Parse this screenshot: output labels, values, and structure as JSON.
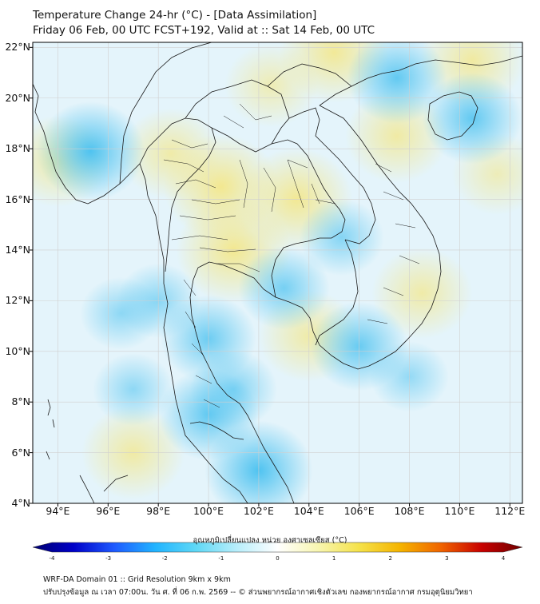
{
  "header": {
    "title": "Temperature Change 24-hr (°C) - [Data Assimilation]",
    "subtitle": "Friday 06 Feb, 00 UTC FCST+192, Valid at :: Sat 14 Feb, 00 UTC"
  },
  "map": {
    "region": "Thailand and mainland Southeast Asia",
    "variable": "24-hour temperature change",
    "units": "°C",
    "lon_range": [
      93,
      112.5
    ],
    "lat_range": [
      4,
      22.2
    ],
    "lat_labels": [
      {
        "value": 22,
        "label": "22°N"
      },
      {
        "value": 20,
        "label": "20°N"
      },
      {
        "value": 18,
        "label": "18°N"
      },
      {
        "value": 16,
        "label": "16°N"
      },
      {
        "value": 14,
        "label": "14°N"
      },
      {
        "value": 12,
        "label": "12°N"
      },
      {
        "value": 10,
        "label": "10°N"
      },
      {
        "value": 8,
        "label": "8°N"
      },
      {
        "value": 6,
        "label": "6°N"
      },
      {
        "value": 4,
        "label": "4°N"
      }
    ],
    "lon_labels": [
      {
        "value": 94,
        "label": "94°E"
      },
      {
        "value": 96,
        "label": "96°E"
      },
      {
        "value": 98,
        "label": "98°E"
      },
      {
        "value": 100,
        "label": "100°E"
      },
      {
        "value": 102,
        "label": "102°E"
      },
      {
        "value": 104,
        "label": "104°E"
      },
      {
        "value": 106,
        "label": "106°E"
      },
      {
        "value": 108,
        "label": "108°E"
      },
      {
        "value": 110,
        "label": "110°E"
      },
      {
        "value": 112,
        "label": "112°E"
      }
    ],
    "gridlines": true,
    "ocean_color": "#e4f4fb",
    "border_color": "#222222"
  },
  "colorbar": {
    "title": "อุณหภูมิเปลี่ยนแปลง หน่วย องศาเซลเซียส (°C)",
    "min": -4,
    "max": 4,
    "ticks": [
      "-4",
      "-3",
      "-2",
      "-1",
      "0",
      "1",
      "2",
      "3",
      "4"
    ],
    "colors": [
      "#000070",
      "#0000c8",
      "#1e5aff",
      "#21b4ff",
      "#5fd8f6",
      "#b8eefb",
      "#ffffff",
      "#f8f6b0",
      "#f5e24a",
      "#f5b400",
      "#f06400",
      "#c80000",
      "#6e0000"
    ]
  },
  "fields": {
    "warm_areas": [
      {
        "lon": 100.5,
        "lat": 16.5,
        "strength": 0.8
      },
      {
        "lon": 103.5,
        "lat": 16.0,
        "strength": 0.75
      },
      {
        "lon": 101.0,
        "lat": 14.0,
        "strength": 0.8
      },
      {
        "lon": 98.5,
        "lat": 17.8,
        "strength": 0.5
      },
      {
        "lon": 94.0,
        "lat": 17.5,
        "strength": 0.5
      },
      {
        "lon": 97.0,
        "lat": 6.0,
        "strength": 0.55
      },
      {
        "lon": 104.0,
        "lat": 10.6,
        "strength": 0.5
      },
      {
        "lon": 105.0,
        "lat": 21.8,
        "strength": 0.7
      },
      {
        "lon": 110.5,
        "lat": 21.5,
        "strength": 0.6
      },
      {
        "lon": 107.5,
        "lat": 18.5,
        "strength": 0.55
      },
      {
        "lon": 108.5,
        "lat": 12.3,
        "strength": 0.5
      },
      {
        "lon": 102.5,
        "lat": 20.5,
        "strength": 0.35
      },
      {
        "lon": 111.5,
        "lat": 17.0,
        "strength": 0.3
      }
    ],
    "cool_areas": [
      {
        "lon": 95.3,
        "lat": 17.9,
        "strength": 1.0
      },
      {
        "lon": 102.0,
        "lat": 5.3,
        "strength": 1.0
      },
      {
        "lon": 100.0,
        "lat": 7.5,
        "strength": 0.8
      },
      {
        "lon": 100.0,
        "lat": 10.5,
        "strength": 0.7
      },
      {
        "lon": 103.0,
        "lat": 12.5,
        "strength": 0.6
      },
      {
        "lon": 106.0,
        "lat": 10.2,
        "strength": 0.75
      },
      {
        "lon": 110.5,
        "lat": 19.2,
        "strength": 0.8
      },
      {
        "lon": 107.5,
        "lat": 20.8,
        "strength": 0.8
      },
      {
        "lon": 105.3,
        "lat": 14.5,
        "strength": 0.45
      },
      {
        "lon": 98.0,
        "lat": 12.0,
        "strength": 0.4
      },
      {
        "lon": 96.5,
        "lat": 11.5,
        "strength": 0.35
      },
      {
        "lon": 97.0,
        "lat": 8.5,
        "strength": 0.35
      },
      {
        "lon": 108.0,
        "lat": 9.0,
        "strength": 0.3
      },
      {
        "lon": 101.0,
        "lat": 8.5,
        "strength": 0.5
      }
    ]
  },
  "footer": {
    "line1": "WRF-DA Domain 01 :: Grid Resolution 9km x 9km",
    "line2": "ปรับปรุงข้อมูล ณ เวลา 07:00น. วัน ศ. ที่ 06 ก.พ. 2569 -- © ส่วนพยากรณ์อากาศเชิงตัวเลข กองพยากรณ์อากาศ กรมอุตุนิยมวิทยา"
  }
}
